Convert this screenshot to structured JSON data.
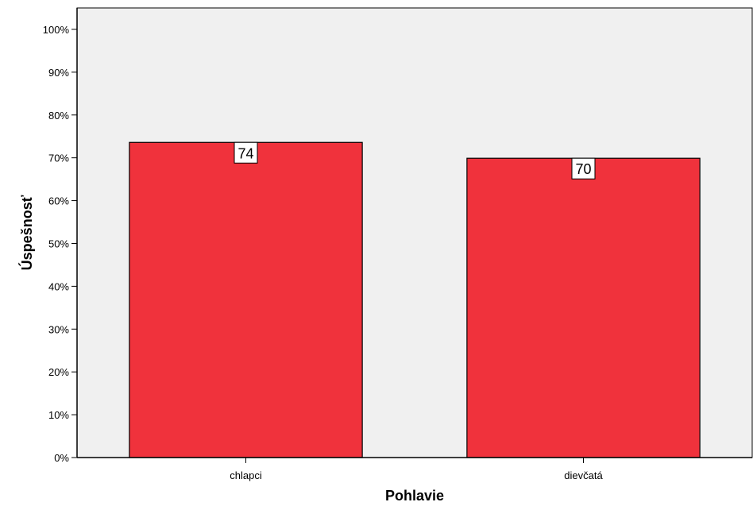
{
  "chart_data": {
    "type": "bar",
    "categories": [
      "chlapci",
      "dievčatá"
    ],
    "values": [
      73.6,
      69.9
    ],
    "data_labels": [
      "74",
      "70"
    ],
    "title": "",
    "xlabel": "Pohlavie",
    "ylabel": "Úspešnosť",
    "ylim": [
      0,
      105
    ],
    "yticks": [
      0,
      10,
      20,
      30,
      40,
      50,
      60,
      70,
      80,
      90,
      100
    ],
    "ytick_labels": [
      "0%",
      "10%",
      "20%",
      "30%",
      "40%",
      "50%",
      "60%",
      "70%",
      "80%",
      "90%",
      "100%"
    ],
    "grid": false,
    "legend": "none",
    "colors": {
      "bar": "#f0323c",
      "plot_background": "#f0f0f0",
      "label_box": "#ffffff"
    }
  }
}
